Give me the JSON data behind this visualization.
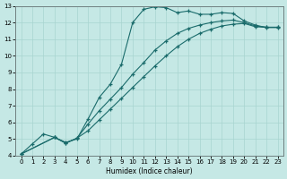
{
  "xlabel": "Humidex (Indice chaleur)",
  "xlim": [
    -0.5,
    23.5
  ],
  "ylim": [
    4,
    13
  ],
  "xticks": [
    0,
    1,
    2,
    3,
    4,
    5,
    6,
    7,
    8,
    9,
    10,
    11,
    12,
    13,
    14,
    15,
    16,
    17,
    18,
    19,
    20,
    21,
    22,
    23
  ],
  "yticks": [
    4,
    5,
    6,
    7,
    8,
    9,
    10,
    11,
    12,
    13
  ],
  "bg_color": "#c5e8e5",
  "grid_color": "#a8d4d0",
  "line_color": "#1a6b6b",
  "line1_x": [
    0,
    1,
    2,
    3,
    4,
    5,
    6,
    7,
    8,
    9,
    10,
    11,
    12,
    13,
    14,
    15,
    16,
    17,
    18,
    19,
    20,
    21,
    22,
    23
  ],
  "line1_y": [
    4.1,
    4.7,
    5.3,
    5.1,
    4.8,
    5.0,
    6.2,
    7.5,
    8.3,
    9.5,
    12.0,
    12.8,
    12.95,
    12.9,
    12.6,
    12.7,
    12.5,
    12.5,
    12.6,
    12.55,
    12.1,
    11.85,
    11.7,
    11.7
  ],
  "line2_x": [
    0,
    3,
    4,
    5,
    6,
    7,
    8,
    9,
    10,
    11,
    12,
    13,
    14,
    15,
    16,
    17,
    18,
    19,
    20,
    21,
    22,
    23
  ],
  "line2_y": [
    4.1,
    5.1,
    4.75,
    5.05,
    5.9,
    6.7,
    7.4,
    8.1,
    8.9,
    9.6,
    10.35,
    10.9,
    11.35,
    11.65,
    11.85,
    12.0,
    12.1,
    12.15,
    12.0,
    11.8,
    11.72,
    11.72
  ],
  "line3_x": [
    0,
    3,
    4,
    5,
    6,
    7,
    8,
    9,
    10,
    11,
    12,
    13,
    14,
    15,
    16,
    17,
    18,
    19,
    20,
    21,
    22,
    23
  ],
  "line3_y": [
    4.1,
    5.1,
    4.75,
    5.05,
    5.5,
    6.15,
    6.8,
    7.45,
    8.1,
    8.75,
    9.4,
    10.0,
    10.55,
    11.0,
    11.35,
    11.6,
    11.8,
    11.9,
    11.95,
    11.75,
    11.72,
    11.72
  ]
}
